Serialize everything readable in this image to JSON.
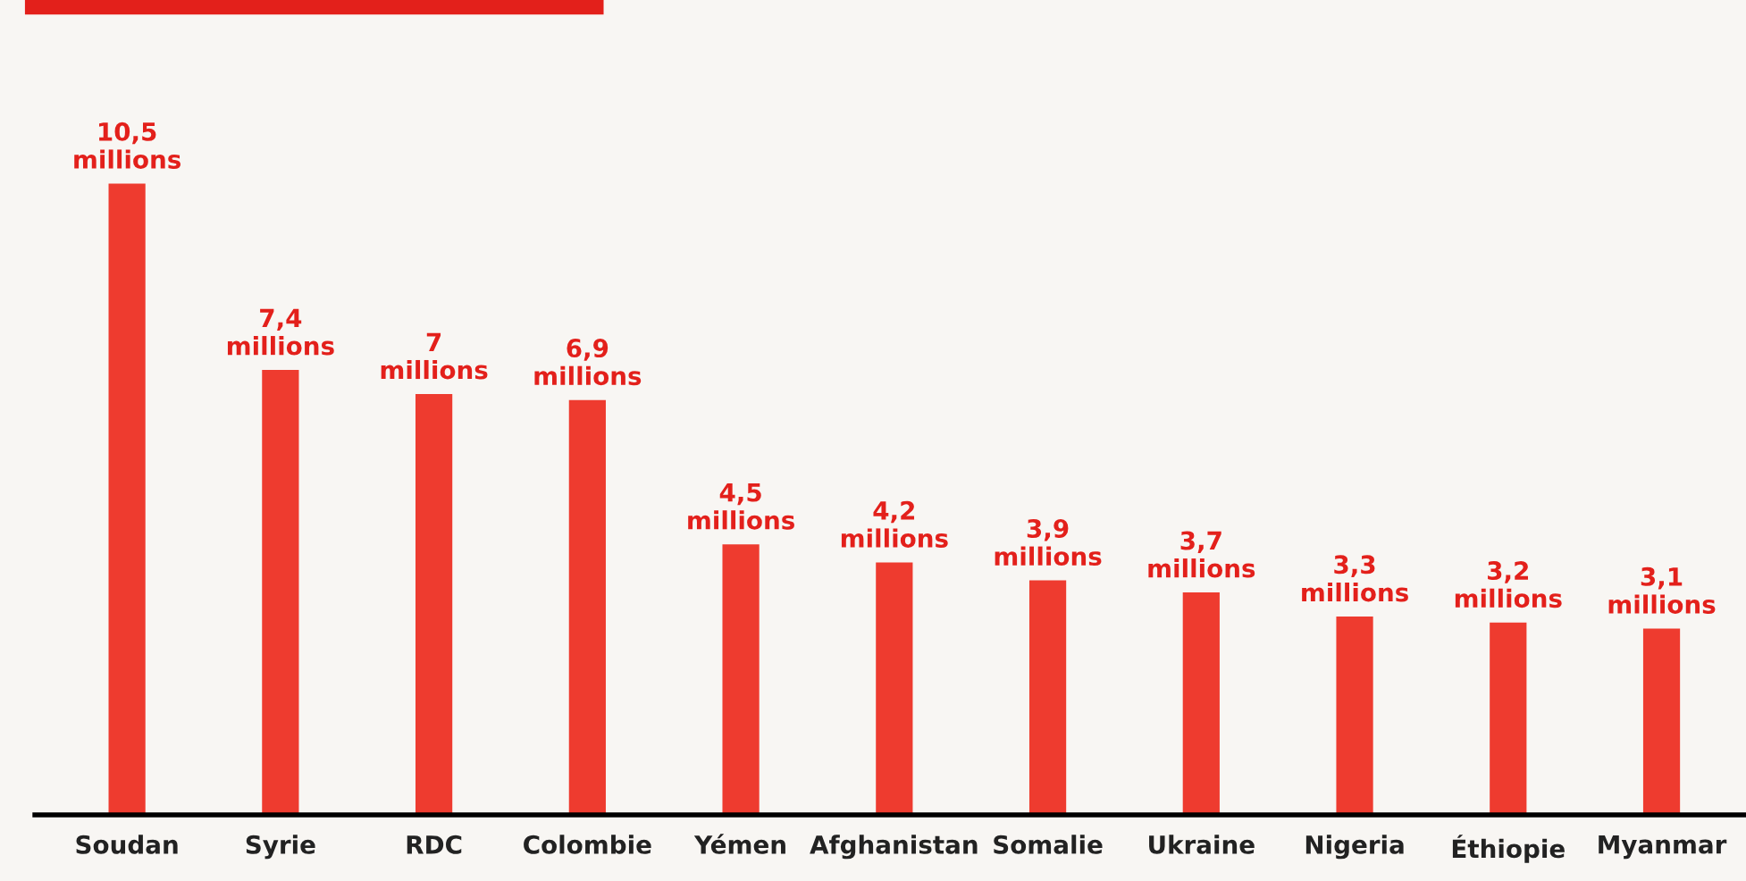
{
  "chart_data": {
    "type": "bar",
    "categories": [
      "Soudan",
      "Syrie",
      "RDC",
      "Colombie",
      "Yémen",
      "Afghanistan",
      "Somalie",
      "Ukraine",
      "Nigeria",
      "Éthiopie",
      "Myanmar"
    ],
    "values": [
      10500000,
      7400000,
      7000000,
      6900000,
      4500000,
      4200000,
      3900000,
      3700000,
      3300000,
      3200000,
      3100000
    ],
    "value_labels": [
      "10,5\nmillions",
      "7,4\nmillions",
      "7\nmillions",
      "6,9\nmillions",
      "4,5\nmillions",
      "4,2\nmillions",
      "3,9\nmillions",
      "3,7\nmillions",
      "3,3\nmillions",
      "3,2\nmillions",
      "3,1\nmillions"
    ],
    "color": "#ee3b2f",
    "grid": false,
    "legend": false
  }
}
